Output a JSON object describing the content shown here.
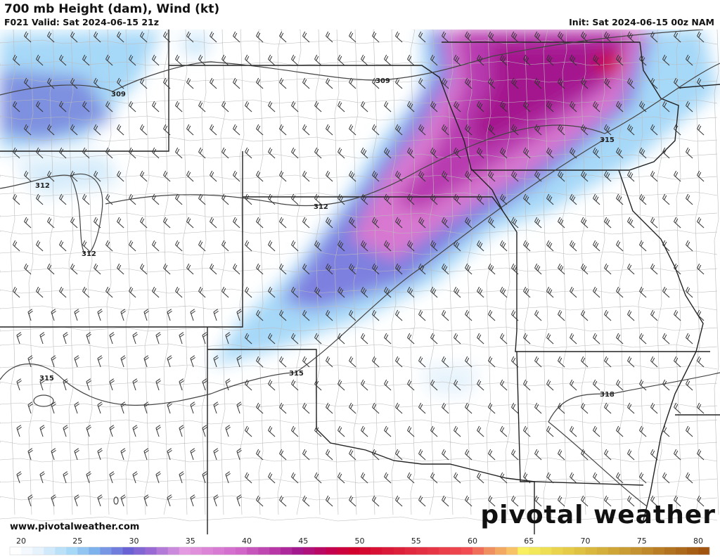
{
  "header": {
    "title": "700 mb Height (dam), Wind (kt)",
    "valid": "F021 Valid: Sat 2024-06-15 21z",
    "init": "Init: Sat 2024-06-15 00z NAM"
  },
  "footer": {
    "website": "www.pivotalweather.com",
    "logo": "pivotal weather"
  },
  "height_contour_labels": [
    "309",
    "309",
    "312",
    "312",
    "312",
    "315",
    "315",
    "315",
    "318"
  ],
  "colorbar": {
    "units": "kt",
    "min": 20,
    "max": 81,
    "tick_labels": [
      "20",
      "25",
      "30",
      "35",
      "40",
      "45",
      "50",
      "55",
      "60",
      "65",
      "70",
      "75",
      "80"
    ],
    "color_stops": [
      [
        20,
        "#ffffff"
      ],
      [
        22,
        "#e6f3fc"
      ],
      [
        25,
        "#a6d8f8"
      ],
      [
        27,
        "#7eb2ec"
      ],
      [
        30,
        "#6a62d4"
      ],
      [
        32,
        "#9a6ad4"
      ],
      [
        35,
        "#e49ae0"
      ],
      [
        40,
        "#d066c8"
      ],
      [
        45,
        "#a4188e"
      ],
      [
        48,
        "#c4004e"
      ],
      [
        50,
        "#d2002c"
      ],
      [
        55,
        "#e0283e"
      ],
      [
        60,
        "#f04c52"
      ],
      [
        62,
        "#f09060"
      ],
      [
        64,
        "#f8c266"
      ],
      [
        65,
        "#f8f060"
      ],
      [
        70,
        "#e0c242"
      ],
      [
        75,
        "#c49230"
      ],
      [
        81,
        "#a05410"
      ]
    ]
  }
}
